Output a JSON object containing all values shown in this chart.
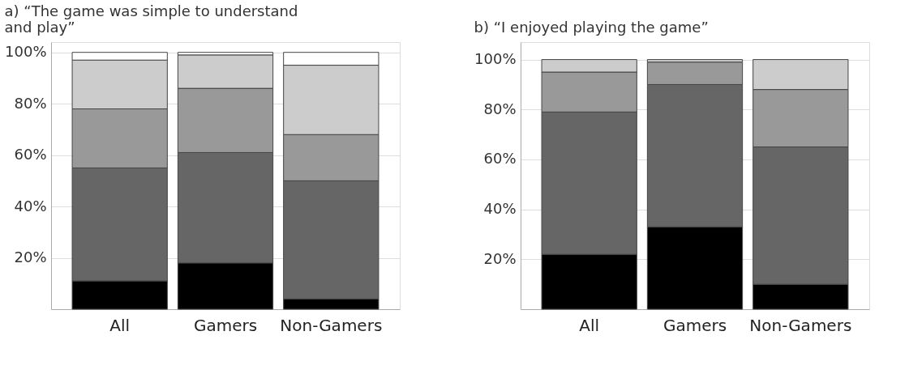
{
  "chart_data": [
    {
      "type": "bar",
      "stacked": true,
      "title": "a) “The game was simple to understand\nand play”",
      "categories": [
        "All",
        "Gamers",
        "Non-Gamers"
      ],
      "series": [
        {
          "color": "#000000",
          "values": [
            11,
            18,
            4
          ]
        },
        {
          "color": "#666666",
          "values": [
            44,
            43,
            46
          ]
        },
        {
          "color": "#999999",
          "values": [
            23,
            25,
            18
          ]
        },
        {
          "color": "#cccccc",
          "values": [
            19,
            13,
            27
          ]
        },
        {
          "color": "#ffffff",
          "values": [
            3,
            1,
            5
          ]
        }
      ],
      "ylim": [
        0,
        104
      ],
      "yticks": [
        {
          "value": 20,
          "label": "20%"
        },
        {
          "value": 40,
          "label": "40%"
        },
        {
          "value": 60,
          "label": "60%"
        },
        {
          "value": 80,
          "label": "80%"
        },
        {
          "value": 100,
          "label": "100%"
        }
      ],
      "grid": "y",
      "legend": false
    },
    {
      "type": "bar",
      "stacked": true,
      "title": "b) “I enjoyed playing the game”",
      "categories": [
        "All",
        "Gamers",
        "Non-Gamers"
      ],
      "series": [
        {
          "color": "#000000",
          "values": [
            22,
            33,
            10
          ]
        },
        {
          "color": "#666666",
          "values": [
            57,
            57,
            55
          ]
        },
        {
          "color": "#999999",
          "values": [
            16,
            9,
            23
          ]
        },
        {
          "color": "#cccccc",
          "values": [
            5,
            1,
            12
          ]
        }
      ],
      "ylim": [
        0,
        107
      ],
      "yticks": [
        {
          "value": 20,
          "label": "20%"
        },
        {
          "value": 40,
          "label": "40%"
        },
        {
          "value": 60,
          "label": "60%"
        },
        {
          "value": 80,
          "label": "80%"
        },
        {
          "value": 100,
          "label": "100%"
        }
      ],
      "grid": "y",
      "legend": false
    }
  ]
}
